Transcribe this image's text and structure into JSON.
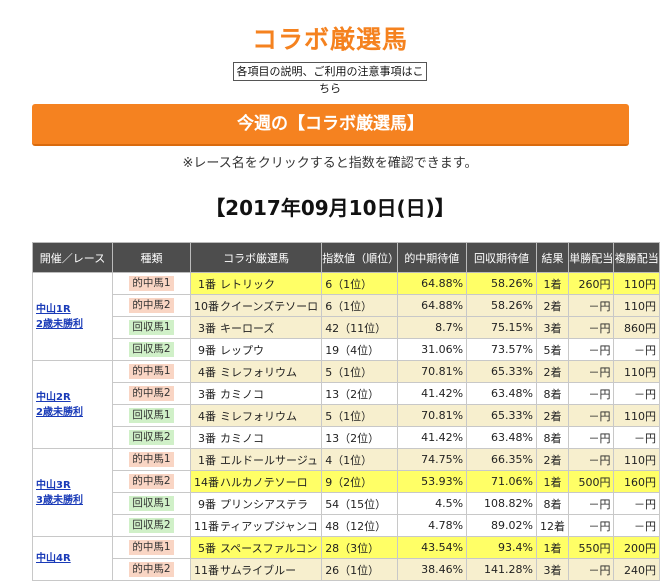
{
  "header": {
    "title": "コラボ厳選馬",
    "notice_link": "各項目の説明、ご利用の注意事項はこちら",
    "banner": "今週の【コラボ厳選馬】",
    "instruction": "※レース名をクリックすると指数を確認できます。",
    "date": "【2017年09月10日(日)】"
  },
  "table": {
    "columns": [
      "開催／レース",
      "種類",
      "コラボ厳選馬",
      "指数値（順位）",
      "的中期待値",
      "回収期待値",
      "結果",
      "単勝配当",
      "複勝配当"
    ],
    "races": [
      {
        "venue": "中山1R",
        "race": "2歳未勝利",
        "rows": [
          {
            "type": "的中馬1",
            "kind": "hit",
            "num": "1番",
            "horse": "レトリック",
            "index": "6（1位）",
            "hit_ev": "64.88%",
            "rec_ev": "58.26%",
            "result": "1着",
            "win": "260円",
            "place": "110円",
            "tone": "yellow"
          },
          {
            "type": "的中馬2",
            "kind": "hit",
            "num": "10番",
            "horse": "クイーンズテソーロ",
            "index": "6（1位）",
            "hit_ev": "64.88%",
            "rec_ev": "58.26%",
            "result": "2着",
            "win": "－円",
            "place": "110円",
            "tone": "beige"
          },
          {
            "type": "回収馬1",
            "kind": "recover",
            "num": "3番",
            "horse": "キーローズ",
            "index": "42（11位）",
            "hit_ev": "8.7%",
            "rec_ev": "75.15%",
            "result": "3着",
            "win": "－円",
            "place": "860円",
            "tone": "beige"
          },
          {
            "type": "回収馬2",
            "kind": "recover",
            "num": "9番",
            "horse": "レップウ",
            "index": "19（4位）",
            "hit_ev": "31.06%",
            "rec_ev": "73.57%",
            "result": "5着",
            "win": "－円",
            "place": "－円",
            "tone": "white"
          }
        ]
      },
      {
        "venue": "中山2R",
        "race": "2歳未勝利",
        "rows": [
          {
            "type": "的中馬1",
            "kind": "hit",
            "num": "4番",
            "horse": "ミレフォリウム",
            "index": "5（1位）",
            "hit_ev": "70.81%",
            "rec_ev": "65.33%",
            "result": "2着",
            "win": "－円",
            "place": "110円",
            "tone": "beige"
          },
          {
            "type": "的中馬2",
            "kind": "hit",
            "num": "3番",
            "horse": "カミノコ",
            "index": "13（2位）",
            "hit_ev": "41.42%",
            "rec_ev": "63.48%",
            "result": "8着",
            "win": "－円",
            "place": "－円",
            "tone": "white"
          },
          {
            "type": "回収馬1",
            "kind": "recover",
            "num": "4番",
            "horse": "ミレフォリウム",
            "index": "5（1位）",
            "hit_ev": "70.81%",
            "rec_ev": "65.33%",
            "result": "2着",
            "win": "－円",
            "place": "110円",
            "tone": "beige"
          },
          {
            "type": "回収馬2",
            "kind": "recover",
            "num": "3番",
            "horse": "カミノコ",
            "index": "13（2位）",
            "hit_ev": "41.42%",
            "rec_ev": "63.48%",
            "result": "8着",
            "win": "－円",
            "place": "－円",
            "tone": "white"
          }
        ]
      },
      {
        "venue": "中山3R",
        "race": "3歳未勝利",
        "rows": [
          {
            "type": "的中馬1",
            "kind": "hit",
            "num": "1番",
            "horse": "エルドールサージュ",
            "index": "4（1位）",
            "hit_ev": "74.75%",
            "rec_ev": "66.35%",
            "result": "2着",
            "win": "－円",
            "place": "110円",
            "tone": "beige"
          },
          {
            "type": "的中馬2",
            "kind": "hit",
            "num": "14番",
            "horse": "ハルカノテソーロ",
            "index": "9（2位）",
            "hit_ev": "53.93%",
            "rec_ev": "71.06%",
            "result": "1着",
            "win": "500円",
            "place": "160円",
            "tone": "yellow"
          },
          {
            "type": "回収馬1",
            "kind": "recover",
            "num": "9番",
            "horse": "プリンシアステラ",
            "index": "54（15位）",
            "hit_ev": "4.5%",
            "rec_ev": "108.82%",
            "result": "8着",
            "win": "－円",
            "place": "－円",
            "tone": "white"
          },
          {
            "type": "回収馬2",
            "kind": "recover",
            "num": "11番",
            "horse": "ティアップジャンコ",
            "index": "48（12位）",
            "hit_ev": "4.78%",
            "rec_ev": "89.02%",
            "result": "12着",
            "win": "－円",
            "place": "－円",
            "tone": "white"
          }
        ]
      },
      {
        "venue": "中山4R",
        "race": "",
        "rows": [
          {
            "type": "的中馬1",
            "kind": "hit",
            "num": "5番",
            "horse": "スペースファルコン",
            "index": "28（3位）",
            "hit_ev": "43.54%",
            "rec_ev": "93.4%",
            "result": "1着",
            "win": "550円",
            "place": "200円",
            "tone": "yellow"
          },
          {
            "type": "的中馬2",
            "kind": "hit",
            "num": "11番",
            "horse": "サムライブルー",
            "index": "26（1位）",
            "hit_ev": "38.46%",
            "rec_ev": "141.28%",
            "result": "3着",
            "win": "－円",
            "place": "240円",
            "tone": "beige"
          }
        ]
      }
    ]
  }
}
